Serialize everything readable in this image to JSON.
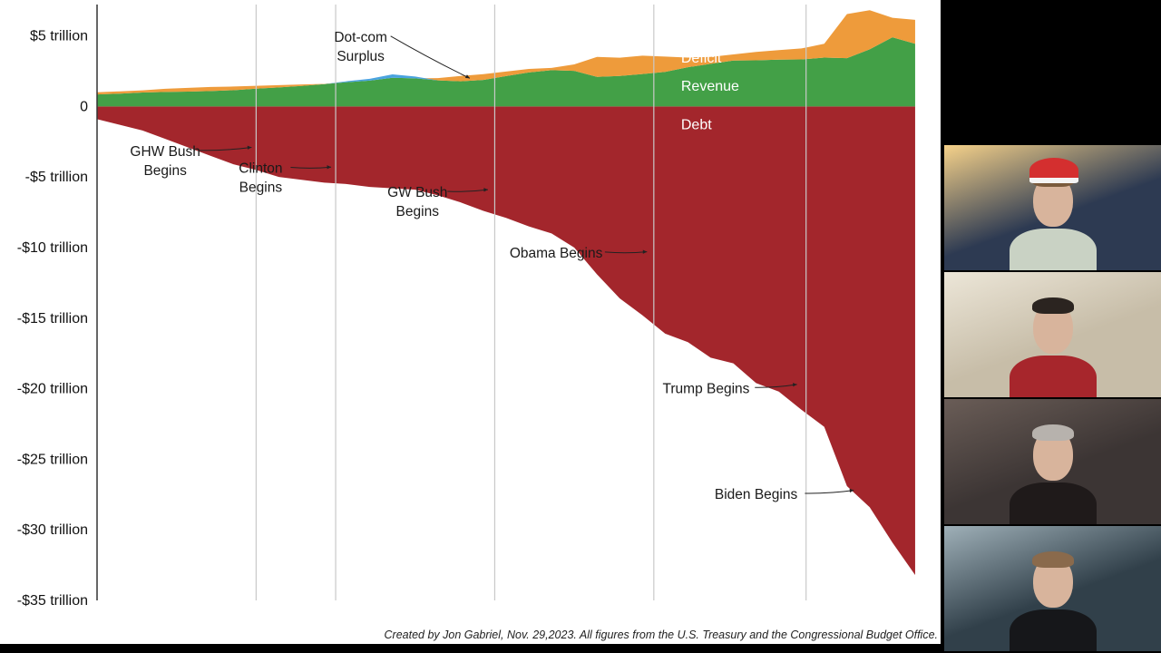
{
  "chart_data": {
    "type": "area",
    "x_range": [
      1987,
      2024
    ],
    "ylim": [
      -35,
      6
    ],
    "y_unit": "trillion USD",
    "ytick_labels": [
      {
        "value": 5,
        "label": "$5 trillion"
      },
      {
        "value": 0,
        "label": "0"
      },
      {
        "value": -5,
        "label": "-$5 trillion"
      },
      {
        "value": -10,
        "label": "-$10 trillion"
      },
      {
        "value": -15,
        "label": "-$15 trillion"
      },
      {
        "value": -20,
        "label": "-$20 trillion"
      },
      {
        "value": -25,
        "label": "-$25 trillion"
      },
      {
        "value": -30,
        "label": "-$30 trillion"
      },
      {
        "value": -35,
        "label": "-$35 trillion"
      }
    ],
    "series": [
      {
        "name": "Debt",
        "color": "#a3262c",
        "points": [
          [
            1987,
            -0.9
          ],
          [
            1988,
            -1.3
          ],
          [
            1989,
            -1.7
          ],
          [
            1990,
            -2.3
          ],
          [
            1991,
            -2.9
          ],
          [
            1992,
            -3.5
          ],
          [
            1993,
            -4.1
          ],
          [
            1994,
            -4.5
          ],
          [
            1995,
            -5.0
          ],
          [
            1996,
            -5.2
          ],
          [
            1997,
            -5.4
          ],
          [
            1998,
            -5.5
          ],
          [
            1999,
            -5.7
          ],
          [
            2000,
            -5.8
          ],
          [
            2001,
            -5.9
          ],
          [
            2002,
            -6.3
          ],
          [
            2003,
            -6.8
          ],
          [
            2004,
            -7.4
          ],
          [
            2005,
            -7.9
          ],
          [
            2006,
            -8.5
          ],
          [
            2007,
            -9.0
          ],
          [
            2008,
            -10.0
          ],
          [
            2009,
            -11.9
          ],
          [
            2010,
            -13.6
          ],
          [
            2011,
            -14.8
          ],
          [
            2012,
            -16.1
          ],
          [
            2013,
            -16.7
          ],
          [
            2014,
            -17.8
          ],
          [
            2015,
            -18.2
          ],
          [
            2016,
            -19.6
          ],
          [
            2017,
            -20.2
          ],
          [
            2018,
            -21.5
          ],
          [
            2019,
            -22.7
          ],
          [
            2020,
            -26.9
          ],
          [
            2021,
            -28.4
          ],
          [
            2022,
            -30.9
          ],
          [
            2023,
            -33.2
          ]
        ]
      },
      {
        "name": "Revenue",
        "color": "#43a047",
        "points": [
          [
            1987,
            0.85
          ],
          [
            1988,
            0.91
          ],
          [
            1989,
            0.99
          ],
          [
            1990,
            1.03
          ],
          [
            1991,
            1.05
          ],
          [
            1992,
            1.09
          ],
          [
            1993,
            1.15
          ],
          [
            1994,
            1.26
          ],
          [
            1995,
            1.35
          ],
          [
            1996,
            1.45
          ],
          [
            1997,
            1.58
          ],
          [
            1998,
            1.72
          ],
          [
            1999,
            1.83
          ],
          [
            2000,
            2.03
          ],
          [
            2001,
            1.99
          ],
          [
            2002,
            1.85
          ],
          [
            2003,
            1.78
          ],
          [
            2004,
            1.88
          ],
          [
            2005,
            2.15
          ],
          [
            2006,
            2.41
          ],
          [
            2007,
            2.57
          ],
          [
            2008,
            2.52
          ],
          [
            2009,
            2.1
          ],
          [
            2010,
            2.16
          ],
          [
            2011,
            2.3
          ],
          [
            2012,
            2.45
          ],
          [
            2013,
            2.78
          ],
          [
            2014,
            3.02
          ],
          [
            2015,
            3.25
          ],
          [
            2016,
            3.27
          ],
          [
            2017,
            3.32
          ],
          [
            2018,
            3.33
          ],
          [
            2019,
            3.46
          ],
          [
            2020,
            3.42
          ],
          [
            2021,
            4.05
          ],
          [
            2022,
            4.9
          ],
          [
            2023,
            4.44
          ]
        ]
      },
      {
        "name": "Deficit",
        "color": "#ee9b3b",
        "points": [
          [
            1987,
            0.15
          ],
          [
            1988,
            0.16
          ],
          [
            1989,
            0.15
          ],
          [
            1990,
            0.22
          ],
          [
            1991,
            0.27
          ],
          [
            1992,
            0.29
          ],
          [
            1993,
            0.26
          ],
          [
            1994,
            0.2
          ],
          [
            1995,
            0.16
          ],
          [
            1996,
            0.11
          ],
          [
            1997,
            0.02
          ],
          [
            1998,
            0
          ],
          [
            1999,
            0
          ],
          [
            2000,
            0
          ],
          [
            2001,
            0
          ],
          [
            2002,
            0.16
          ],
          [
            2003,
            0.38
          ],
          [
            2004,
            0.41
          ],
          [
            2005,
            0.32
          ],
          [
            2006,
            0.25
          ],
          [
            2007,
            0.16
          ],
          [
            2008,
            0.46
          ],
          [
            2009,
            1.41
          ],
          [
            2010,
            1.29
          ],
          [
            2011,
            1.3
          ],
          [
            2012,
            1.08
          ],
          [
            2013,
            0.68
          ],
          [
            2014,
            0.49
          ],
          [
            2015,
            0.44
          ],
          [
            2016,
            0.59
          ],
          [
            2017,
            0.67
          ],
          [
            2018,
            0.78
          ],
          [
            2019,
            0.98
          ],
          [
            2020,
            3.13
          ],
          [
            2021,
            2.77
          ],
          [
            2022,
            1.38
          ],
          [
            2023,
            1.7
          ]
        ]
      },
      {
        "name": "Dot-com Surplus",
        "color": "#4aa3df",
        "points": [
          [
            1997,
            0
          ],
          [
            1998,
            0.07
          ],
          [
            1999,
            0.13
          ],
          [
            2000,
            0.24
          ],
          [
            2001,
            0.13
          ],
          [
            2002,
            0
          ]
        ]
      }
    ],
    "series_labels": [
      {
        "series": "Deficit",
        "text": "Deficit",
        "x": 2012.7,
        "y": 3.1
      },
      {
        "series": "Revenue",
        "text": "Revenue",
        "x": 2012.7,
        "y": 1.1
      },
      {
        "series": "Debt",
        "text": "Debt",
        "x": 2012.7,
        "y": -1.6
      }
    ],
    "period_lines": [
      1994,
      1997.5,
      2004.5,
      2011.5,
      2018.2
    ],
    "annotations": [
      {
        "lines": [
          "Dot-com",
          "Surplus"
        ],
        "anchor_x": 1998.6,
        "anchor_y": 4.6,
        "arrow_to": [
          2003.4,
          2.0
        ]
      },
      {
        "lines": [
          "GHW Bush",
          "Begins"
        ],
        "anchor_x": 1990.0,
        "anchor_y": -3.5,
        "arrow_to": [
          1993.8,
          -2.9
        ]
      },
      {
        "lines": [
          "Clinton",
          "Begins"
        ],
        "anchor_x": 1994.2,
        "anchor_y": -4.7,
        "arrow_to": [
          1997.3,
          -4.3
        ]
      },
      {
        "lines": [
          "GW Bush",
          "Begins"
        ],
        "anchor_x": 2001.1,
        "anchor_y": -6.4,
        "arrow_to": [
          2004.2,
          -5.9
        ]
      },
      {
        "lines": [
          "Obama Begins"
        ],
        "anchor_x": 2007.2,
        "anchor_y": -10.7,
        "arrow_to": [
          2011.2,
          -10.3
        ]
      },
      {
        "lines": [
          "Trump Begins"
        ],
        "anchor_x": 2013.8,
        "anchor_y": -20.3,
        "arrow_to": [
          2017.8,
          -19.7
        ]
      },
      {
        "lines": [
          "Biden Begins"
        ],
        "anchor_x": 2016.0,
        "anchor_y": -27.8,
        "arrow_to": [
          2020.3,
          -27.2
        ]
      }
    ],
    "grid": false
  },
  "credit": "Created by Jon Gabriel, Nov. 29,2023. All figures from the U.S. Treasury and the Congressional Budget Office.",
  "video_tiles": [
    {
      "name": "participant-1",
      "background": "#2d3a52",
      "accent": "#f6d28a",
      "shirt": "#c9d2c4",
      "hair": "#7a5a3c",
      "hat": "#d42f2f"
    },
    {
      "name": "participant-2",
      "background": "#c7bda8",
      "accent": "#ece6d8",
      "shirt": "#a7262c",
      "hair": "#2b2420",
      "hat": ""
    },
    {
      "name": "participant-3",
      "background": "#3c3534",
      "accent": "#6a5d57",
      "shirt": "#1f1a1a",
      "hair": "#b7b2ad",
      "hat": ""
    },
    {
      "name": "participant-4",
      "background": "#31404a",
      "accent": "#9fb0b8",
      "shirt": "#16171a",
      "hair": "#8a6a4c",
      "hat": ""
    }
  ]
}
